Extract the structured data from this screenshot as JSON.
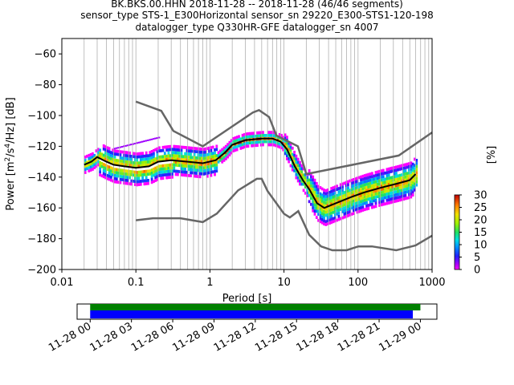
{
  "header": {
    "line1": "BK.BKS.00.HHN   2018-11-28 -- 2018-11-28  (46/46 segments)",
    "line2": "sensor_type STS-1_E300Horizontal sensor_sn 29220_E300-STS1-120-198",
    "line3": "datalogger_type Q330HR-GFE datalogger_sn 4007"
  },
  "chart_data": [
    {
      "type": "heatmap",
      "xlabel": "Period [s]",
      "ylabel": "Power [m²/s⁴/Hz] [dB]",
      "xscale": "log",
      "xlim": [
        0.01,
        1000
      ],
      "ylim": [
        -200,
        -50
      ],
      "grid": "vertical lines at each log decade subdivision",
      "xticks": [
        {
          "v": 0.01,
          "label": "0.01"
        },
        {
          "v": 0.1,
          "label": "0.1"
        },
        {
          "v": 1,
          "label": "1"
        },
        {
          "v": 10,
          "label": "10"
        },
        {
          "v": 100,
          "label": "100"
        },
        {
          "v": 1000,
          "label": "1000"
        }
      ],
      "yticks": [
        {
          "v": -60,
          "label": "−60"
        },
        {
          "v": -80,
          "label": "−80"
        },
        {
          "v": -100,
          "label": "−100"
        },
        {
          "v": -120,
          "label": "−120"
        },
        {
          "v": -140,
          "label": "−140"
        },
        {
          "v": -160,
          "label": "−160"
        },
        {
          "v": -180,
          "label": "−180"
        },
        {
          "v": -200,
          "label": "−200"
        }
      ],
      "nhnm": {
        "name": "New High Noise Model",
        "color": "#666666",
        "points": [
          [
            0.1,
            -91
          ],
          [
            0.22,
            -97
          ],
          [
            0.32,
            -110
          ],
          [
            0.8,
            -120
          ],
          [
            3.8,
            -98
          ],
          [
            4.6,
            -96.5
          ],
          [
            6.3,
            -101
          ],
          [
            7.9,
            -113
          ],
          [
            15.4,
            -120
          ],
          [
            20,
            -138
          ],
          [
            354.8,
            -126
          ],
          [
            1000,
            -111
          ]
        ]
      },
      "nlnm": {
        "name": "New Low Noise Model",
        "color": "#666666",
        "points": [
          [
            0.1,
            -168
          ],
          [
            0.17,
            -166.7
          ],
          [
            0.4,
            -166.7
          ],
          [
            0.8,
            -169.2
          ],
          [
            1.24,
            -163.7
          ],
          [
            2.4,
            -148.6
          ],
          [
            4.3,
            -141.1
          ],
          [
            5,
            -141.1
          ],
          [
            6,
            -149
          ],
          [
            10,
            -163.8
          ],
          [
            12,
            -166.2
          ],
          [
            15.6,
            -162.1
          ],
          [
            21.9,
            -177.5
          ],
          [
            31.6,
            -185
          ],
          [
            45,
            -187.5
          ],
          [
            70,
            -187.5
          ],
          [
            101,
            -185
          ],
          [
            154,
            -185
          ],
          [
            328,
            -187.5
          ],
          [
            600,
            -184.4
          ],
          [
            1000,
            -178
          ]
        ]
      },
      "mean_curve": {
        "color": "#000000",
        "points": [
          [
            0.02,
            -132
          ],
          [
            0.025,
            -130
          ],
          [
            0.03,
            -127
          ],
          [
            0.04,
            -130
          ],
          [
            0.05,
            -132
          ],
          [
            0.07,
            -133
          ],
          [
            0.1,
            -134
          ],
          [
            0.15,
            -133
          ],
          [
            0.2,
            -130
          ],
          [
            0.3,
            -129
          ],
          [
            0.5,
            -130
          ],
          [
            0.8,
            -131
          ],
          [
            1.2,
            -129
          ],
          [
            1.6,
            -124
          ],
          [
            2,
            -119
          ],
          [
            3,
            -116
          ],
          [
            5,
            -115
          ],
          [
            7,
            -115
          ],
          [
            9,
            -117
          ],
          [
            11,
            -122
          ],
          [
            14,
            -133
          ],
          [
            18,
            -142
          ],
          [
            22,
            -148
          ],
          [
            28,
            -157
          ],
          [
            35,
            -160
          ],
          [
            50,
            -157
          ],
          [
            80,
            -153
          ],
          [
            120,
            -150
          ],
          [
            200,
            -147
          ],
          [
            350,
            -144
          ],
          [
            500,
            -142
          ],
          [
            600,
            -138
          ]
        ]
      },
      "colorbar": {
        "label": "[%]",
        "min": 0,
        "max": 30,
        "ticks": [
          {
            "v": 0,
            "label": "0"
          },
          {
            "v": 5,
            "label": "5"
          },
          {
            "v": 10,
            "label": "10"
          },
          {
            "v": 15,
            "label": "15"
          },
          {
            "v": 20,
            "label": "20"
          },
          {
            "v": 25,
            "label": "25"
          },
          {
            "v": 30,
            "label": "30"
          }
        ]
      }
    },
    {
      "type": "bar",
      "description_of_content": "data coverage timeline",
      "xlim_hours": [
        -0.95,
        25.2
      ],
      "xticks": [
        {
          "h": 0,
          "label": "11-28 00"
        },
        {
          "h": 3,
          "label": "11-28 03"
        },
        {
          "h": 6,
          "label": "11-28 06"
        },
        {
          "h": 9,
          "label": "11-28 09"
        },
        {
          "h": 12,
          "label": "11-28 12"
        },
        {
          "h": 15,
          "label": "11-28 15"
        },
        {
          "h": 18,
          "label": "11-28 18"
        },
        {
          "h": 21,
          "label": "11-28 21"
        },
        {
          "h": 24,
          "label": "11-29 00"
        }
      ],
      "bars": [
        {
          "start_h": 0,
          "end_h": 24.0,
          "color": "#008000"
        },
        {
          "start_h": 0,
          "end_h": 23.45,
          "color": "#0000ff"
        }
      ]
    }
  ]
}
